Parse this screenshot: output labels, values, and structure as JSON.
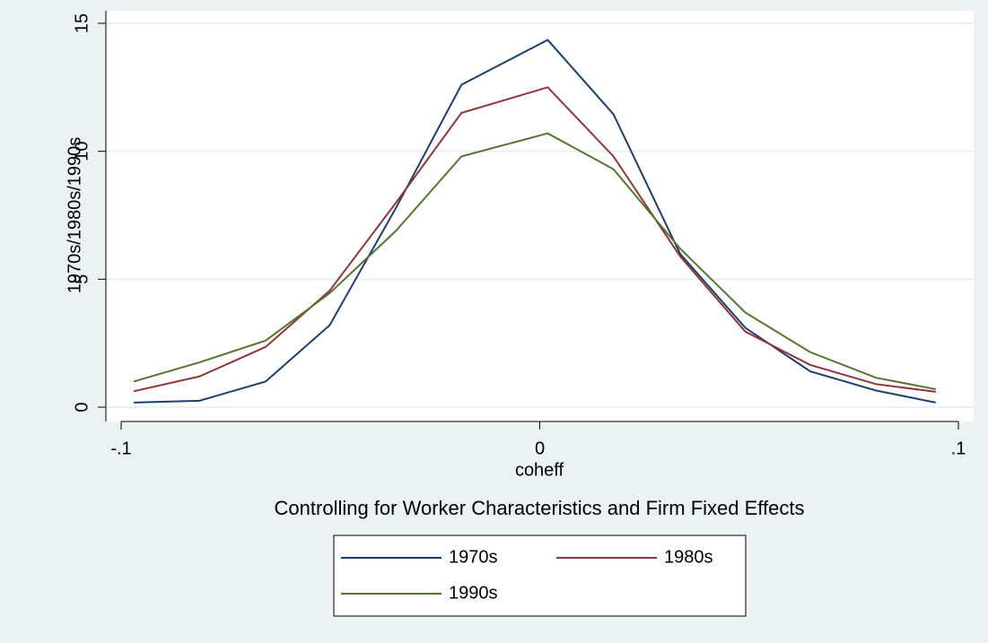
{
  "chart_data": {
    "type": "line",
    "subtitle": "Controlling for Worker Characteristics and Firm Fixed Effects",
    "x_label": "coheff",
    "y_label": "1970s/1980s/1990s",
    "x": [
      -0.097,
      -0.0813,
      -0.0655,
      -0.0502,
      -0.0343,
      -0.0187,
      0.0019,
      0.0176,
      0.0335,
      0.0491,
      0.0646,
      0.0803,
      0.0946
    ],
    "series": [
      {
        "name": "1970s",
        "color": "#1a3f6f",
        "values": [
          0.18,
          0.25,
          1.0,
          3.2,
          7.8,
          12.6,
          14.35,
          11.45,
          6.0,
          3.1,
          1.4,
          0.65,
          0.18
        ]
      },
      {
        "name": "1980s",
        "color": "#90353b",
        "values": [
          0.62,
          1.2,
          2.35,
          4.55,
          8.0,
          11.5,
          12.5,
          9.8,
          5.9,
          2.95,
          1.65,
          0.9,
          0.6
        ]
      },
      {
        "name": "1990s",
        "color": "#55752f",
        "values": [
          1.0,
          1.75,
          2.6,
          4.45,
          6.9,
          9.8,
          10.7,
          9.3,
          6.2,
          3.7,
          2.15,
          1.15,
          0.7
        ]
      }
    ],
    "xlim": [
      -0.1,
      0.1
    ],
    "xticks": [
      {
        "value": -0.1,
        "label": "-.1"
      },
      0,
      {
        "value": 0.1,
        "label": ".1"
      }
    ],
    "ylim": [
      0,
      15
    ],
    "yticks": [
      0,
      5,
      10,
      15
    ],
    "grid": true
  }
}
